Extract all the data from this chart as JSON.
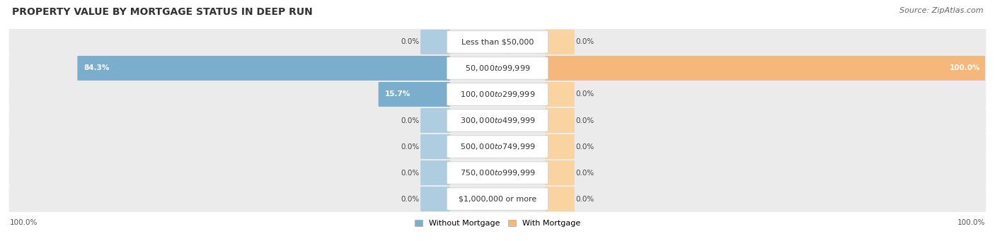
{
  "title": "PROPERTY VALUE BY MORTGAGE STATUS IN DEEP RUN",
  "source": "Source: ZipAtlas.com",
  "categories": [
    "Less than $50,000",
    "$50,000 to $99,999",
    "$100,000 to $299,999",
    "$300,000 to $499,999",
    "$500,000 to $749,999",
    "$750,000 to $999,999",
    "$1,000,000 or more"
  ],
  "without_mortgage": [
    0.0,
    84.3,
    15.7,
    0.0,
    0.0,
    0.0,
    0.0
  ],
  "with_mortgage": [
    0.0,
    100.0,
    0.0,
    0.0,
    0.0,
    0.0,
    0.0
  ],
  "color_without": "#7aaecc",
  "color_with": "#f5b87a",
  "color_without_stub": "#aecde0",
  "color_with_stub": "#f9d4a0",
  "bg_row_odd": "#f0f0f0",
  "bg_row_even": "#e8e8e8",
  "label_bottom_left": "100.0%",
  "label_bottom_right": "100.0%",
  "legend_without": "Without Mortgage",
  "legend_with": "With Mortgage",
  "title_fontsize": 10,
  "source_fontsize": 8,
  "cat_fontsize": 8,
  "val_fontsize": 7.5
}
